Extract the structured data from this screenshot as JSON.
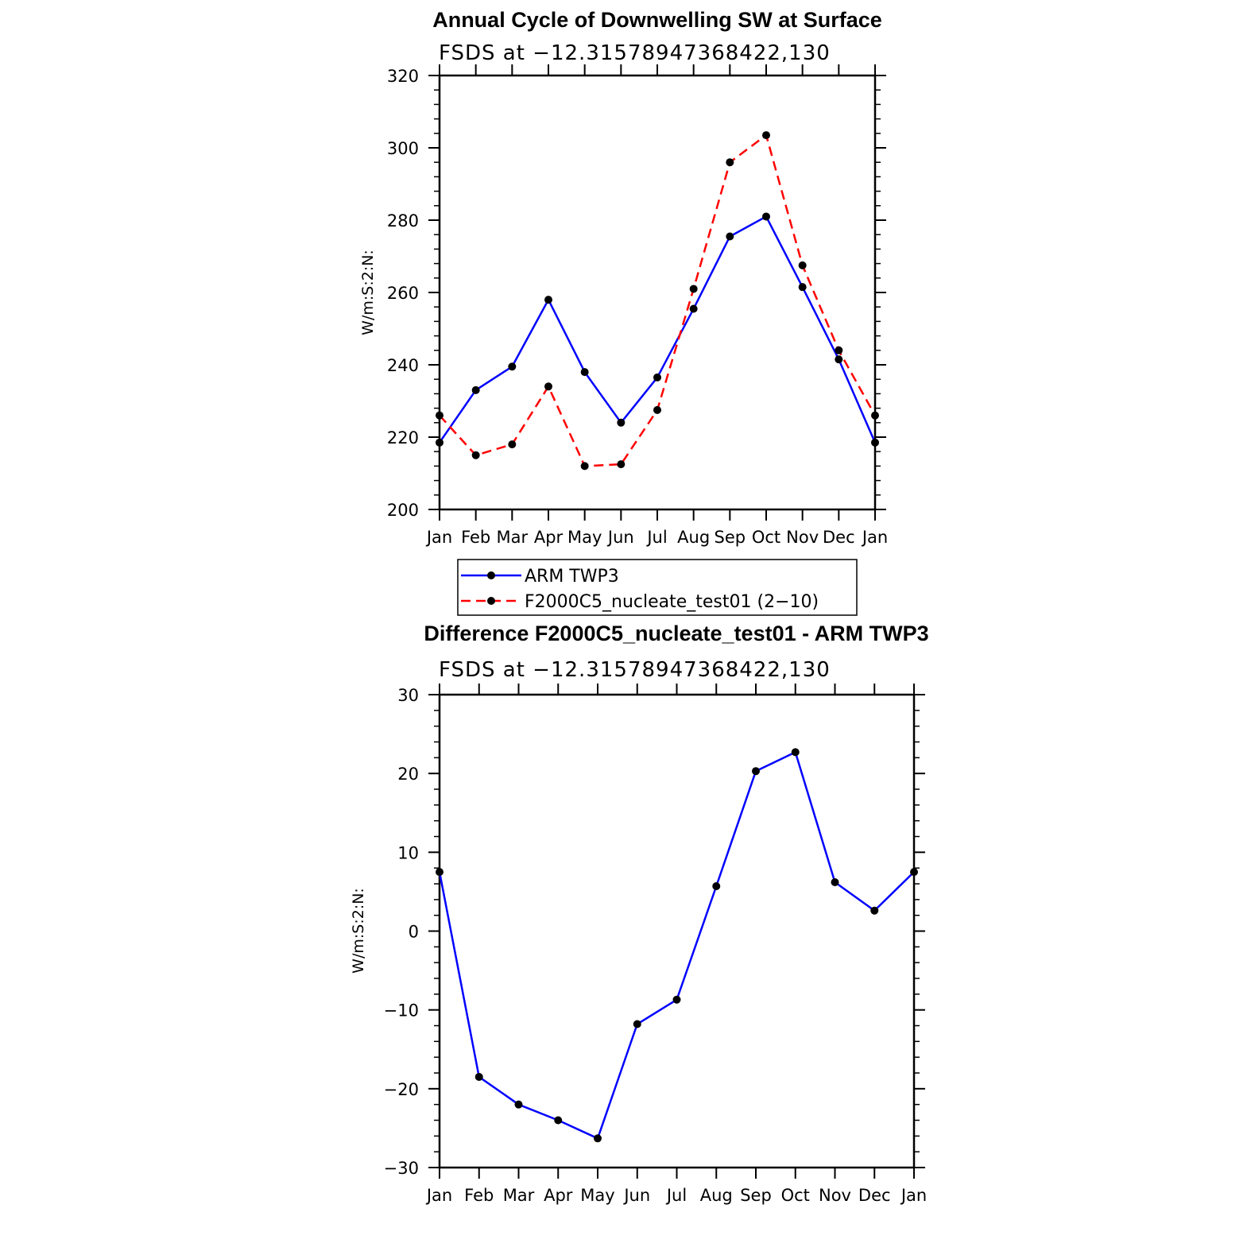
{
  "chart_data": [
    {
      "type": "line",
      "title": "Annual Cycle of Downwelling SW at Surface",
      "subtitle": "FSDS at −12.31578947368422,130",
      "ylabel": "W/m:S:2:N:",
      "ylim": [
        200,
        320
      ],
      "ytick_labels": [
        "200",
        "220",
        "240",
        "260",
        "280",
        "300",
        "320"
      ],
      "categories": [
        "Jan",
        "Feb",
        "Mar",
        "Apr",
        "May",
        "Jun",
        "Jul",
        "Aug",
        "Sep",
        "Oct",
        "Nov",
        "Dec",
        "Jan"
      ],
      "series": [
        {
          "name": "ARM TWP3",
          "color": "#0000ff",
          "dash": "solid",
          "values": [
            218.5,
            233,
            239.5,
            258,
            238,
            224,
            236.5,
            255.5,
            275.5,
            281,
            261.5,
            241.5,
            218.5
          ]
        },
        {
          "name": "F2000C5_nucleate_test01 (2−10)",
          "color": "#ff0000",
          "dash": "dashed",
          "values": [
            226,
            215,
            218,
            234,
            212,
            212.5,
            227.5,
            261,
            296,
            303.5,
            267.5,
            244,
            226
          ]
        }
      ],
      "legend": {
        "position": "below",
        "entries": [
          "ARM TWP3",
          "F2000C5_nucleate_test01 (2−10)"
        ]
      }
    },
    {
      "type": "line",
      "title": "Difference F2000C5_nucleate_test01 - ARM TWP3",
      "subtitle": "FSDS at −12.31578947368422,130",
      "ylabel": "W/m:S:2:N:",
      "ylim": [
        -30,
        30
      ],
      "ytick_labels": [
        "−30",
        "−20",
        "−10",
        "0",
        "10",
        "20",
        "30"
      ],
      "categories": [
        "Jan",
        "Feb",
        "Mar",
        "Apr",
        "May",
        "Jun",
        "Jul",
        "Aug",
        "Sep",
        "Oct",
        "Nov",
        "Dec",
        "Jan"
      ],
      "series": [
        {
          "name": "Difference",
          "color": "#0000ff",
          "dash": "solid",
          "values": [
            7.5,
            -18.5,
            -22,
            -24,
            -26.3,
            -11.8,
            -8.7,
            5.7,
            20.3,
            22.7,
            6.2,
            2.6,
            7.5
          ]
        }
      ]
    }
  ]
}
